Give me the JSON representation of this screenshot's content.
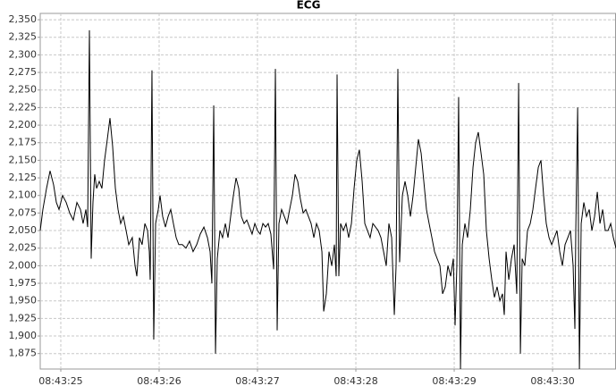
{
  "chart_data": {
    "type": "line",
    "title": "ECG",
    "x": [
      24.791,
      24.818,
      24.855,
      24.891,
      24.927,
      24.955,
      24.982,
      25.018,
      25.055,
      25.091,
      25.127,
      25.164,
      25.2,
      25.227,
      25.255,
      25.273,
      25.291,
      25.309,
      25.327,
      25.345,
      25.364,
      25.391,
      25.418,
      25.445,
      25.473,
      25.5,
      25.527,
      25.555,
      25.582,
      25.609,
      25.636,
      25.664,
      25.691,
      25.727,
      25.755,
      25.773,
      25.8,
      25.827,
      25.855,
      25.882,
      25.9,
      25.909,
      25.927,
      25.945,
      25.964,
      25.991,
      26.009,
      26.036,
      26.064,
      26.091,
      26.118,
      26.145,
      26.173,
      26.2,
      26.236,
      26.273,
      26.309,
      26.345,
      26.382,
      26.418,
      26.455,
      26.491,
      26.518,
      26.536,
      26.555,
      26.573,
      26.591,
      26.618,
      26.645,
      26.673,
      26.7,
      26.727,
      26.755,
      26.782,
      26.809,
      26.836,
      26.864,
      26.891,
      26.918,
      26.945,
      26.973,
      27,
      27.027,
      27.055,
      27.082,
      27.109,
      27.136,
      27.164,
      27.182,
      27.2,
      27.218,
      27.245,
      27.273,
      27.3,
      27.327,
      27.355,
      27.382,
      27.409,
      27.436,
      27.464,
      27.491,
      27.518,
      27.545,
      27.573,
      27.6,
      27.627,
      27.655,
      27.673,
      27.7,
      27.727,
      27.755,
      27.782,
      27.8,
      27.809,
      27.827,
      27.845,
      27.873,
      27.9,
      27.927,
      27.955,
      27.982,
      28.009,
      28.036,
      28.064,
      28.091,
      28.118,
      28.145,
      28.173,
      28.2,
      28.227,
      28.255,
      28.282,
      28.309,
      28.336,
      28.364,
      28.391,
      28.409,
      28.427,
      28.445,
      28.473,
      28.5,
      28.527,
      28.555,
      28.582,
      28.609,
      28.636,
      28.664,
      28.691,
      28.718,
      28.745,
      28.773,
      28.8,
      28.827,
      28.855,
      28.882,
      28.909,
      28.936,
      28.964,
      28.991,
      29.009,
      29.027,
      29.045,
      29.064,
      29.082,
      29.109,
      29.136,
      29.164,
      29.191,
      29.218,
      29.245,
      29.273,
      29.3,
      29.327,
      29.355,
      29.382,
      29.409,
      29.436,
      29.464,
      29.491,
      29.509,
      29.527,
      29.555,
      29.582,
      29.609,
      29.636,
      29.655,
      29.673,
      29.691,
      29.718,
      29.745,
      29.773,
      29.8,
      29.827,
      29.855,
      29.882,
      29.909,
      29.936,
      29.964,
      29.991,
      30.018,
      30.045,
      30.073,
      30.1,
      30.127,
      30.155,
      30.182,
      30.209,
      30.227,
      30.236,
      30.255,
      30.273,
      30.291,
      30.318,
      30.345,
      30.373,
      30.4,
      30.427,
      30.455,
      30.482,
      30.509,
      30.536,
      30.564,
      30.591,
      30.618,
      30.645
    ],
    "series": [
      {
        "color": "#000000",
        "values": [
          2050,
          2080,
          2110,
          2135,
          2115,
          2090,
          2080,
          2100,
          2090,
          2075,
          2065,
          2090,
          2080,
          2060,
          2080,
          2055,
          2335,
          2010,
          2090,
          2130,
          2110,
          2120,
          2110,
          2150,
          2180,
          2210,
          2170,
          2110,
          2080,
          2060,
          2070,
          2050,
          2030,
          2040,
          2000,
          1985,
          2040,
          2030,
          2060,
          2050,
          2020,
          1980,
          2278,
          1895,
          2060,
          2080,
          2100,
          2070,
          2055,
          2070,
          2080,
          2060,
          2040,
          2030,
          2030,
          2025,
          2035,
          2020,
          2030,
          2045,
          2055,
          2040,
          2020,
          1975,
          2228,
          1875,
          2010,
          2050,
          2040,
          2060,
          2040,
          2070,
          2100,
          2125,
          2110,
          2070,
          2060,
          2065,
          2055,
          2045,
          2060,
          2050,
          2045,
          2060,
          2055,
          2060,
          2045,
          1995,
          2280,
          1908,
          2060,
          2080,
          2070,
          2060,
          2080,
          2100,
          2130,
          2120,
          2095,
          2075,
          2080,
          2070,
          2060,
          2040,
          2060,
          2050,
          2020,
          1935,
          1960,
          2020,
          2000,
          2030,
          1985,
          2272,
          1985,
          2060,
          2050,
          2060,
          2040,
          2060,
          2110,
          2150,
          2165,
          2120,
          2060,
          2050,
          2040,
          2060,
          2055,
          2050,
          2040,
          2020,
          2000,
          2060,
          2040,
          1930,
          2000,
          2280,
          2005,
          2100,
          2120,
          2100,
          2070,
          2100,
          2140,
          2180,
          2160,
          2120,
          2080,
          2060,
          2040,
          2020,
          2010,
          2000,
          1960,
          1970,
          2000,
          1985,
          2010,
          1915,
          2000,
          2240,
          1853,
          2030,
          2060,
          2040,
          2080,
          2140,
          2175,
          2190,
          2160,
          2130,
          2050,
          2010,
          1980,
          1955,
          1970,
          1950,
          1960,
          1930,
          2020,
          1980,
          2010,
          2030,
          1960,
          2260,
          1875,
          2010,
          2000,
          2050,
          2060,
          2080,
          2110,
          2140,
          2150,
          2100,
          2060,
          2040,
          2030,
          2040,
          2050,
          2020,
          2000,
          2030,
          2040,
          2050,
          2000,
          1910,
          2050,
          2225,
          1853,
          2060,
          2090,
          2070,
          2080,
          2050,
          2070,
          2105,
          2060,
          2080,
          2050,
          2050,
          2060,
          2040,
          2025
        ]
      }
    ],
    "xlim": [
      24.791,
      30.645
    ],
    "xticks": [
      {
        "value": 25,
        "label": "08:43:25"
      },
      {
        "value": 26,
        "label": "08:43:26"
      },
      {
        "value": 27,
        "label": "08:43:27"
      },
      {
        "value": 28,
        "label": "08:43:28"
      },
      {
        "value": 29,
        "label": "08:43:29"
      },
      {
        "value": 30,
        "label": "08:43:30"
      }
    ],
    "ylim": [
      1853,
      2359
    ],
    "yticks": [
      {
        "value": 1875,
        "label": "1,875"
      },
      {
        "value": 1900,
        "label": "1,900"
      },
      {
        "value": 1925,
        "label": "1,925"
      },
      {
        "value": 1950,
        "label": "1,950"
      },
      {
        "value": 1975,
        "label": "1,975"
      },
      {
        "value": 2000,
        "label": "2,000"
      },
      {
        "value": 2025,
        "label": "2,025"
      },
      {
        "value": 2050,
        "label": "2,050"
      },
      {
        "value": 2075,
        "label": "2,075"
      },
      {
        "value": 2100,
        "label": "2,100"
      },
      {
        "value": 2125,
        "label": "2,125"
      },
      {
        "value": 2150,
        "label": "2,150"
      },
      {
        "value": 2175,
        "label": "2,175"
      },
      {
        "value": 2200,
        "label": "2,200"
      },
      {
        "value": 2225,
        "label": "2,225"
      },
      {
        "value": 2250,
        "label": "2,250"
      },
      {
        "value": 2275,
        "label": "2,275"
      },
      {
        "value": 2300,
        "label": "2,300"
      },
      {
        "value": 2325,
        "label": "2,325"
      },
      {
        "value": 2350,
        "label": "2,350"
      }
    ],
    "grid": true
  }
}
